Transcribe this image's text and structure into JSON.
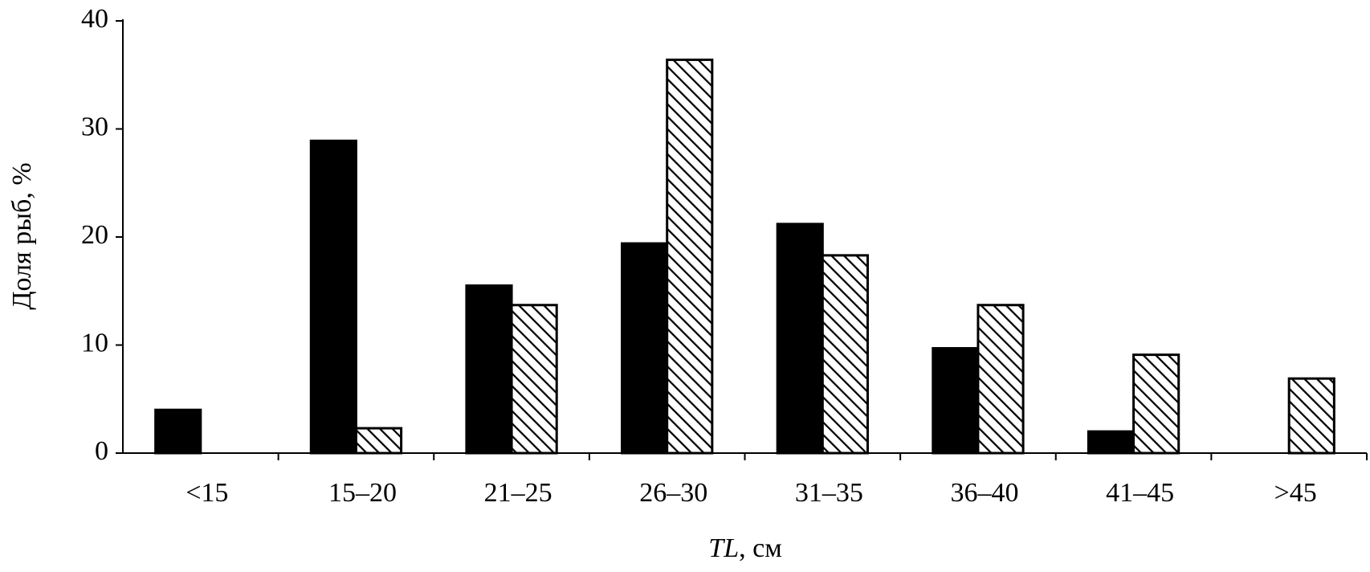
{
  "chart_data": {
    "type": "bar",
    "ylabel": "Доля рыб, %",
    "xlabel": {
      "italic": "TL",
      "text": ", см"
    },
    "categories": [
      "<15",
      "15–20",
      "21–25",
      "26–30",
      "31–35",
      "36–40",
      "41–45",
      ">45"
    ],
    "series": [
      {
        "color": "#000000",
        "pattern": "solid",
        "values": [
          4,
          28.9,
          15.5,
          19.4,
          21.2,
          9.7,
          2.0,
          0
        ]
      },
      {
        "color": "#000000",
        "pattern": "hatch",
        "values": [
          0,
          2.3,
          13.7,
          36.4,
          18.3,
          13.7,
          9.1,
          6.9
        ]
      }
    ],
    "ylim": [
      0,
      40
    ],
    "yticks": [
      0,
      10,
      20,
      30,
      40
    ],
    "grid": false
  }
}
